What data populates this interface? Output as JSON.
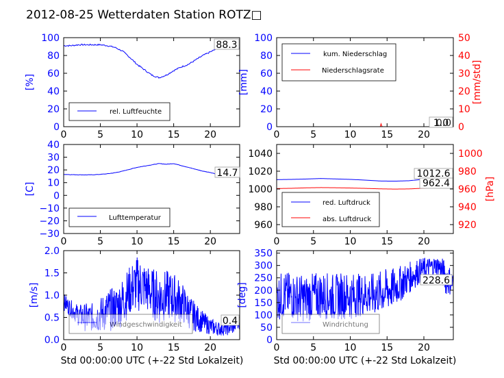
{
  "figure": {
    "title": "2012-08-25 Wetterdaten Station ROTZ□",
    "xlabel": "Std 00:00:00 UTC (+-22 Std Lokalzeit)"
  },
  "colors": {
    "blue": "#0000ff",
    "red": "#ff0000",
    "axis": "#000000"
  },
  "chart_data": [
    {
      "type": "line",
      "ylabel": "[%]",
      "xlim": [
        0,
        24
      ],
      "ylim": [
        0,
        100
      ],
      "xticks": [
        0,
        5,
        10,
        15,
        20
      ],
      "yticks": [
        0,
        20,
        40,
        60,
        80,
        100
      ],
      "legend": "lower-left",
      "series": [
        {
          "name": "rel. Luftfeuchte",
          "color": "#0000ff",
          "x": [
            0,
            1,
            2,
            3,
            4,
            5,
            6,
            7,
            8,
            9,
            10,
            11,
            12,
            13,
            14,
            15,
            16,
            17,
            18,
            19,
            20,
            21,
            22,
            23,
            24
          ],
          "y": [
            91,
            91,
            92,
            92,
            92,
            92,
            91,
            89,
            85,
            78,
            70,
            64,
            58,
            55,
            58,
            63,
            67,
            70,
            75,
            80,
            84,
            88,
            90,
            89,
            88.3
          ]
        }
      ],
      "annotation": "88.3"
    },
    {
      "type": "line",
      "ylabel": "[mm]",
      "ylabel2": "[mm/std]",
      "xlim": [
        0,
        24
      ],
      "ylim": [
        0,
        100
      ],
      "ylim2": [
        0,
        50
      ],
      "xticks": [
        0,
        5,
        10,
        15,
        20
      ],
      "yticks": [
        0,
        20,
        40,
        60,
        80,
        100
      ],
      "yticks2": [
        0,
        10,
        20,
        30,
        40,
        50
      ],
      "legend": "top-left",
      "series": [
        {
          "name": "kum. Niederschlag",
          "color": "#0000ff",
          "axis": "left",
          "x": [
            0,
            14.2,
            24
          ],
          "y": [
            0,
            0,
            0
          ]
        },
        {
          "name": "Niederschlagsrate",
          "color": "#ff0000",
          "axis": "right",
          "x": [
            0,
            14.1,
            14.2,
            14.3,
            24
          ],
          "y": [
            0,
            0,
            2,
            0,
            0
          ]
        }
      ],
      "annotations": [
        "1.0",
        "0.0"
      ]
    },
    {
      "type": "line",
      "ylabel": "[C]",
      "xlim": [
        0,
        24
      ],
      "ylim": [
        -30,
        40
      ],
      "xticks": [
        0,
        5,
        10,
        15,
        20
      ],
      "yticks": [
        -30,
        -20,
        -10,
        0,
        10,
        20,
        30,
        40
      ],
      "legend": "lower-left",
      "series": [
        {
          "name": "Lufttemperatur",
          "color": "#0000ff",
          "x": [
            0,
            1,
            2,
            3,
            4,
            5,
            6,
            7,
            8,
            9,
            10,
            11,
            12,
            13,
            14,
            15,
            16,
            17,
            18,
            19,
            20,
            21,
            22,
            23,
            24
          ],
          "y": [
            16.5,
            16.3,
            16.2,
            16.1,
            16.2,
            16.5,
            17,
            17.8,
            19,
            20.5,
            22,
            23,
            24,
            25,
            24.5,
            25,
            23.5,
            22,
            20.5,
            19,
            18,
            16.5,
            15.8,
            15.3,
            14.7
          ]
        }
      ],
      "annotation": "14.7"
    },
    {
      "type": "line",
      "ylabel2": "[hPa]",
      "xlim": [
        0,
        24
      ],
      "ylim": [
        950,
        1050
      ],
      "ylim2": [
        910,
        1010
      ],
      "xticks": [
        0,
        5,
        10,
        15,
        20
      ],
      "yticks": [
        960,
        980,
        1000,
        1020,
        1040
      ],
      "yticks2": [
        920,
        940,
        960,
        980,
        1000
      ],
      "legend": "lower-left",
      "series": [
        {
          "name": "red. Luftdruck",
          "color": "#0000ff",
          "axis": "left",
          "x": [
            0,
            2,
            4,
            6,
            8,
            10,
            12,
            14,
            16,
            18,
            20,
            22,
            24
          ],
          "y": [
            1010.5,
            1010.8,
            1011.2,
            1011.8,
            1011.3,
            1010.8,
            1010,
            1009,
            1008.8,
            1009.3,
            1011,
            1012.2,
            1012.6
          ]
        },
        {
          "name": "abs. Luftdruck",
          "color": "#ff0000",
          "axis": "right",
          "x": [
            0,
            2,
            4,
            6,
            8,
            10,
            12,
            14,
            16,
            18,
            20,
            22,
            24
          ],
          "y": [
            960.5,
            960.8,
            961.3,
            961.6,
            961.4,
            961.1,
            960.7,
            960.2,
            959.9,
            960.1,
            960.9,
            961.8,
            962.4
          ]
        }
      ],
      "annotations": [
        "1012.6",
        "962.4"
      ]
    },
    {
      "type": "line",
      "ylabel": "[m/s]",
      "xlabel": "Std 00:00:00 UTC (+-22 Std Lokalzeit)",
      "xlim": [
        0,
        24
      ],
      "ylim": [
        0,
        2.0
      ],
      "xticks": [
        0,
        5,
        10,
        15,
        20
      ],
      "yticks": [
        0.0,
        0.5,
        1.0,
        1.5,
        2.0
      ],
      "legend": "lower-left",
      "series": [
        {
          "name": "Windgeschwindigkeit",
          "color": "#0000ff",
          "x": [
            0,
            1,
            2,
            3,
            4,
            5,
            6,
            7,
            8,
            9,
            10,
            11,
            12,
            13,
            14,
            15,
            16,
            17,
            18,
            19,
            20,
            21,
            22,
            23,
            24
          ],
          "y": [
            0.85,
            0.7,
            0.55,
            0.5,
            0.5,
            0.55,
            0.65,
            0.7,
            0.85,
            1.1,
            1.25,
            1.2,
            1.05,
            0.95,
            1.0,
            0.95,
            0.85,
            0.65,
            0.5,
            0.4,
            0.3,
            0.25,
            0.25,
            0.3,
            0.4
          ],
          "amplitude": [
            0.12,
            0.12,
            0.15,
            0.2,
            0.2,
            0.25,
            0.3,
            0.3,
            0.35,
            0.35,
            0.4,
            0.35,
            0.35,
            0.4,
            0.35,
            0.35,
            0.3,
            0.25,
            0.2,
            0.15,
            0.12,
            0.1,
            0.1,
            0.12,
            0.1
          ]
        }
      ],
      "annotation": "0.4"
    },
    {
      "type": "line",
      "ylabel": "[deg]",
      "xlabel": "Std 00:00:00 UTC (+-22 Std Lokalzeit)",
      "xlim": [
        0,
        24
      ],
      "ylim": [
        0,
        360
      ],
      "xticks": [
        0,
        5,
        10,
        15,
        20
      ],
      "yticks": [
        0,
        50,
        100,
        150,
        200,
        250,
        300,
        350
      ],
      "legend": "lower-left",
      "series": [
        {
          "name": "Windrichtung",
          "color": "#0000ff",
          "x": [
            0,
            1,
            2,
            3,
            4,
            5,
            6,
            7,
            8,
            9,
            10,
            11,
            12,
            13,
            14,
            15,
            16,
            17,
            18,
            19,
            20,
            21,
            22,
            23,
            24
          ],
          "y": [
            170,
            180,
            175,
            170,
            165,
            175,
            180,
            175,
            170,
            180,
            175,
            180,
            185,
            180,
            190,
            200,
            210,
            230,
            250,
            270,
            285,
            295,
            300,
            250,
            228.6
          ],
          "amplitude": [
            60,
            60,
            60,
            60,
            60,
            60,
            60,
            60,
            60,
            60,
            60,
            55,
            55,
            55,
            55,
            55,
            50,
            45,
            40,
            35,
            30,
            25,
            25,
            45,
            30
          ]
        }
      ],
      "annotation": "228.6"
    }
  ]
}
